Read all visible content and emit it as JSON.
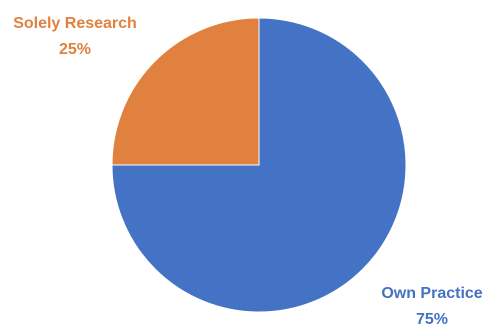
{
  "chart_data": {
    "type": "pie",
    "title": "",
    "slices": [
      {
        "label": "Own Practice",
        "value": 75,
        "display_value": "75%",
        "color": "#4472C4"
      },
      {
        "label": "Solely Research",
        "value": 25,
        "display_value": "25%",
        "color": "#E0813F"
      }
    ],
    "start_angle": "12 o'clock",
    "direction": "clockwise",
    "legend": "none",
    "data_labels": "outside"
  }
}
